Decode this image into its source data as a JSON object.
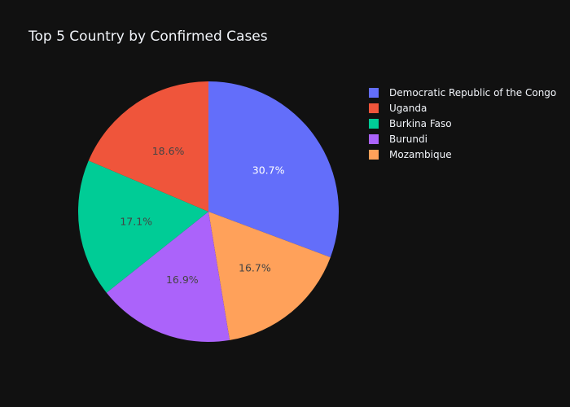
{
  "chart_data": {
    "type": "pie",
    "title": "Top 5 Country by Confirmed Cases",
    "slices": [
      {
        "label": "Democratic Republic of the Congo",
        "percent": 30.7,
        "percent_text": "30.7%",
        "color": "#636efa",
        "text_color": "#ffffff"
      },
      {
        "label": "Mozambique",
        "percent": 16.7,
        "percent_text": "16.7%",
        "color": "#ffa15a",
        "text_color": "#444444"
      },
      {
        "label": "Burundi",
        "percent": 16.9,
        "percent_text": "16.9%",
        "color": "#ab63fa",
        "text_color": "#444444"
      },
      {
        "label": "Burkina Faso",
        "percent": 17.1,
        "percent_text": "17.1%",
        "color": "#00cc96",
        "text_color": "#444444"
      },
      {
        "label": "Uganda",
        "percent": 18.6,
        "percent_text": "18.6%",
        "color": "#ef553b",
        "text_color": "#444444"
      }
    ],
    "legend": {
      "placement": "right",
      "items": [
        {
          "label": "Democratic Republic of the Congo",
          "color": "#636efa"
        },
        {
          "label": "Uganda",
          "color": "#ef553b"
        },
        {
          "label": "Burkina Faso",
          "color": "#00cc96"
        },
        {
          "label": "Burundi",
          "color": "#ab63fa"
        },
        {
          "label": "Mozambique",
          "color": "#ffa15a"
        }
      ]
    },
    "direction": "clockwise",
    "start_angle": "top"
  }
}
